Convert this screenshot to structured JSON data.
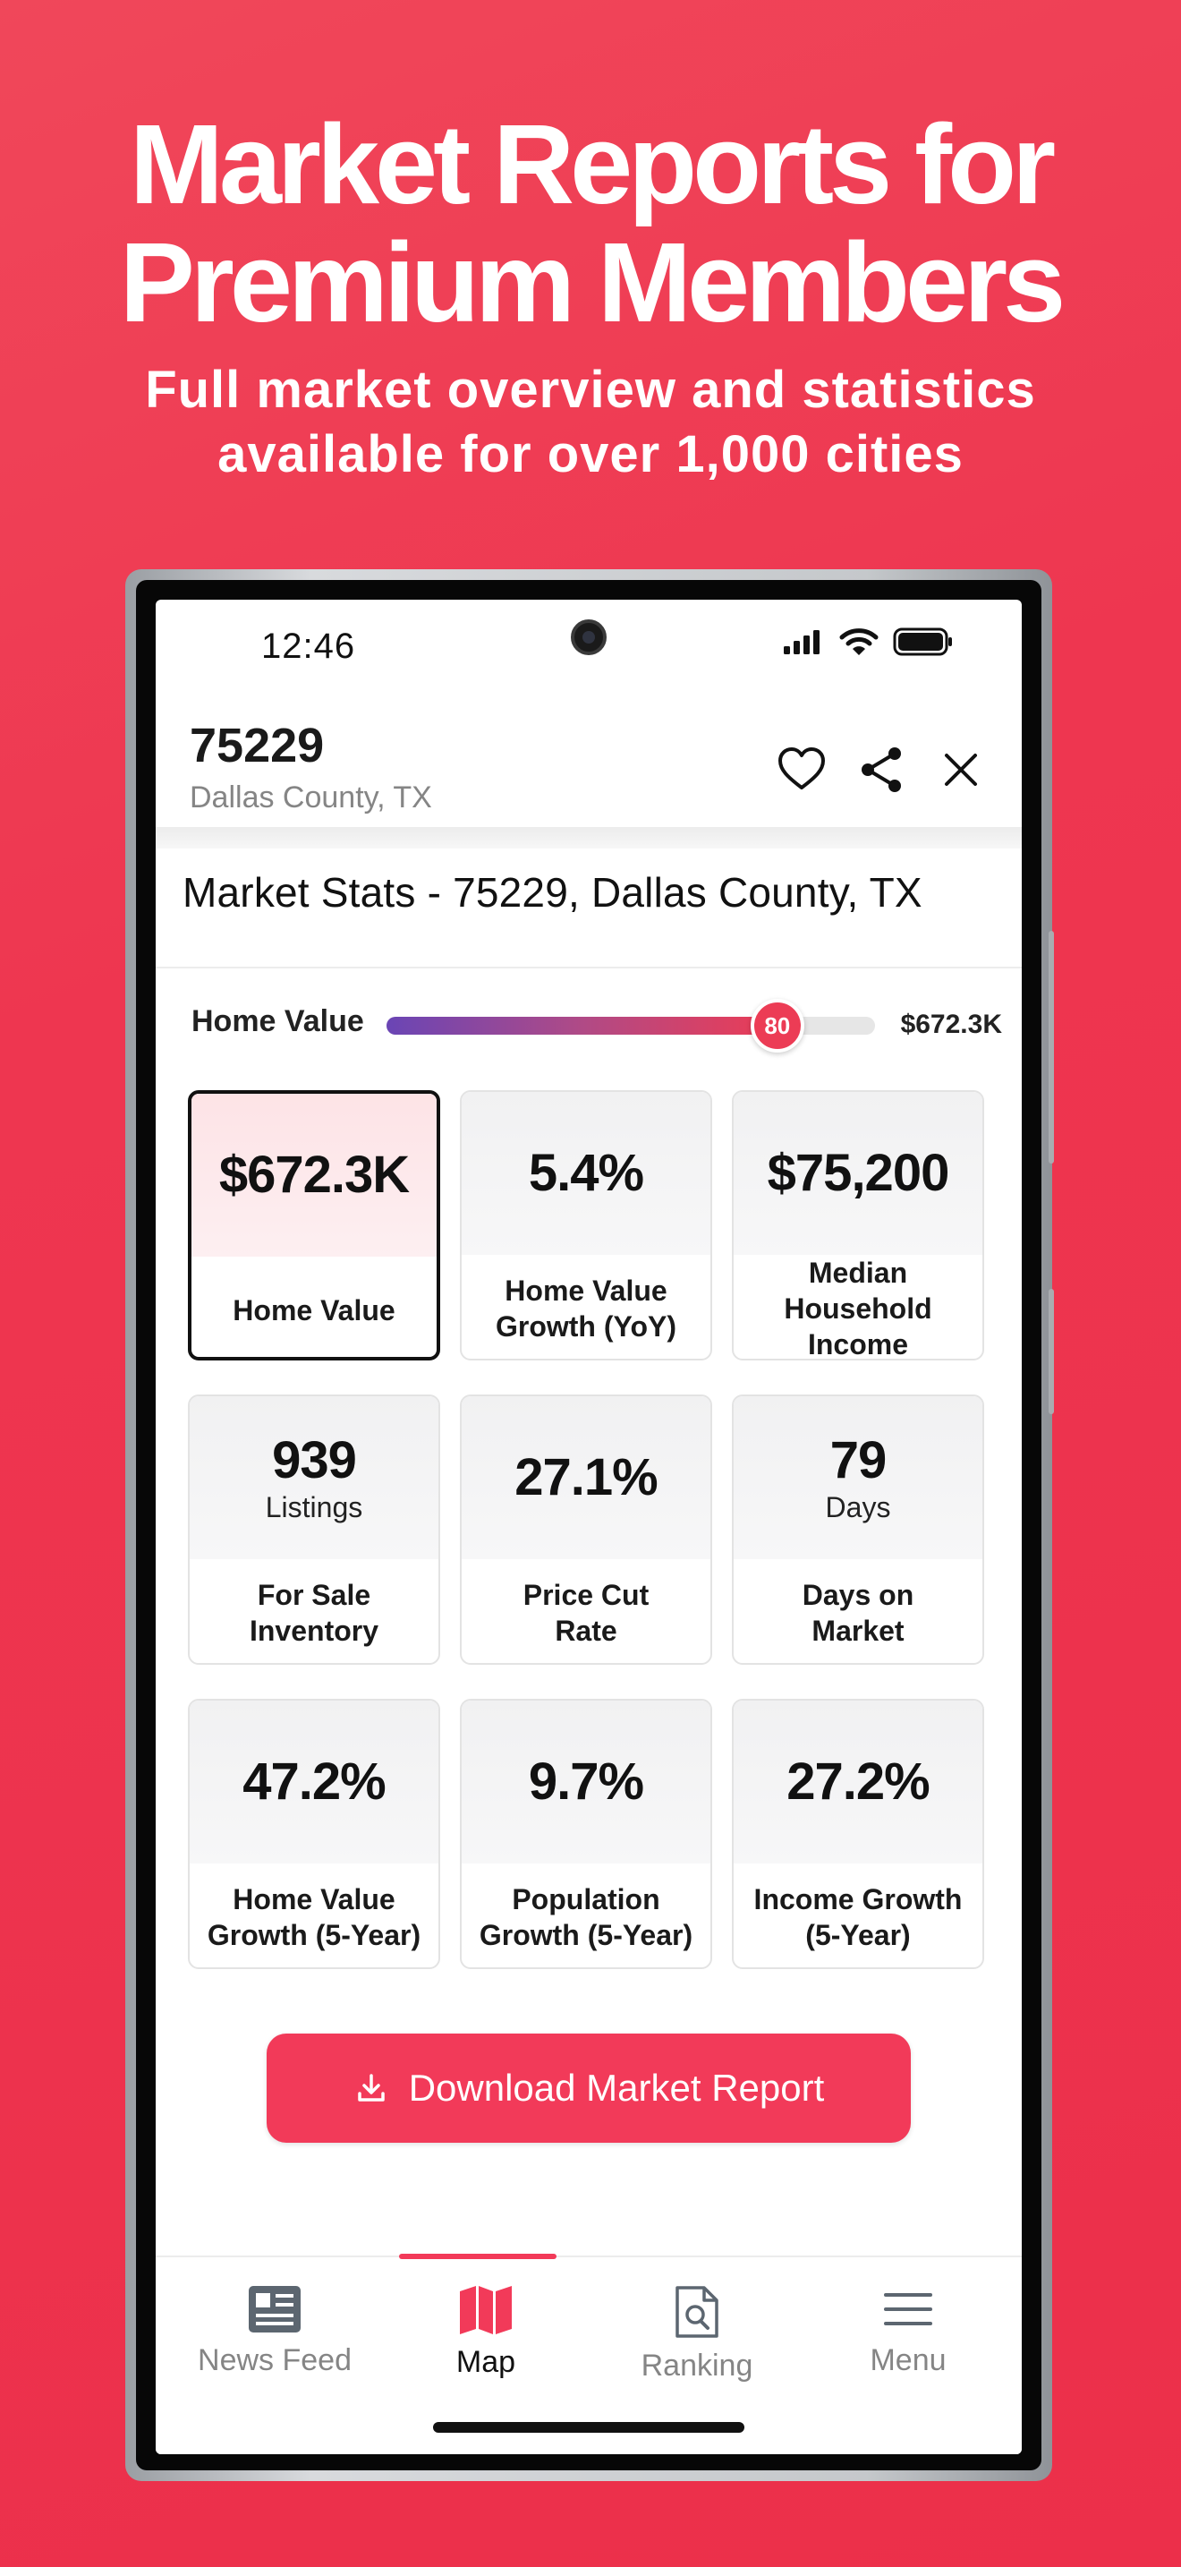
{
  "hero": {
    "title_line1": "Market Reports for",
    "title_line2": "Premium Members",
    "subtitle_line1": "Full market overview and statistics",
    "subtitle_line2": "available for over 1,000 cities"
  },
  "status_bar": {
    "time": "12:46"
  },
  "header": {
    "zip": "75229",
    "county": "Dallas County, TX",
    "icons": [
      "heart-icon",
      "share-icon",
      "close-icon"
    ]
  },
  "market_stats": {
    "title": "Market Stats - 75229,  Dallas County, TX",
    "home_value_label": "Home Value",
    "home_value_score": "80",
    "home_value_score_fraction": 0.8,
    "home_value_amount": "$672.3K"
  },
  "cards": [
    {
      "value": "$672.3K",
      "unit": "",
      "label_line1": "Home Value",
      "label_line2": "",
      "selected": true
    },
    {
      "value": "5.4%",
      "unit": "",
      "label_line1": "Home Value",
      "label_line2": "Growth (YoY)",
      "selected": false
    },
    {
      "value": "$75,200",
      "unit": "",
      "label_line1": "Median Household",
      "label_line2": "Income",
      "selected": false
    },
    {
      "value": "939",
      "unit": "Listings",
      "label_line1": "For Sale",
      "label_line2": "Inventory",
      "selected": false
    },
    {
      "value": "27.1%",
      "unit": "",
      "label_line1": "Price Cut",
      "label_line2": "Rate",
      "selected": false
    },
    {
      "value": "79",
      "unit": "Days",
      "label_line1": "Days on",
      "label_line2": "Market",
      "selected": false
    },
    {
      "value": "47.2%",
      "unit": "",
      "label_line1": "Home Value",
      "label_line2": "Growth (5-Year)",
      "selected": false
    },
    {
      "value": "9.7%",
      "unit": "",
      "label_line1": "Population",
      "label_line2": "Growth (5-Year)",
      "selected": false
    },
    {
      "value": "27.2%",
      "unit": "",
      "label_line1": "Income Growth",
      "label_line2": "(5-Year)",
      "selected": false
    }
  ],
  "download_button": {
    "label": "Download Market Report"
  },
  "tabs": [
    {
      "label": "News Feed",
      "icon": "news-feed-icon",
      "active": false
    },
    {
      "label": "Map",
      "icon": "map-icon",
      "active": true
    },
    {
      "label": "Ranking",
      "icon": "ranking-icon",
      "active": false
    },
    {
      "label": "Menu",
      "icon": "menu-icon",
      "active": false
    }
  ],
  "colors": {
    "brand": "#ec2f4a",
    "button": "#f23a59",
    "slider_start": "#6a45b5",
    "slider_end": "#ec3c55",
    "selected_card_tint": "#fde3e6"
  }
}
